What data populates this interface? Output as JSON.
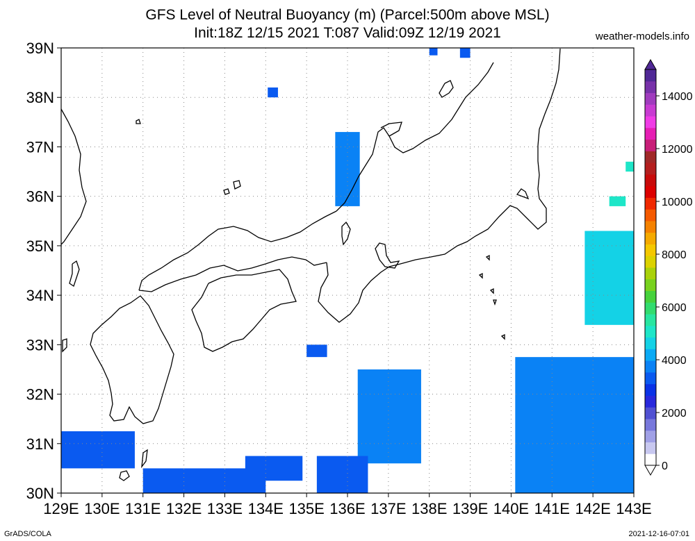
{
  "title_line1": "GFS Level of Neutral Buoyancy (m) (Parcel:500m above MSL)",
  "title_line2": "Init:18Z 12/15 2021 T:087 Valid:09Z 12/19 2021",
  "credit": "weather-models.info",
  "footer_left": "GrADS/COLA",
  "footer_right": "2021-12-16-07:01",
  "axes": {
    "lat_labels": [
      "30N",
      "31N",
      "32N",
      "33N",
      "34N",
      "35N",
      "36N",
      "37N",
      "38N",
      "39N"
    ],
    "lon_labels": [
      "129E",
      "130E",
      "131E",
      "132E",
      "133E",
      "134E",
      "135E",
      "136E",
      "137E",
      "138E",
      "139E",
      "140E",
      "141E",
      "142E",
      "143E"
    ],
    "lat_range": [
      30,
      39
    ],
    "lon_range": [
      129,
      143
    ],
    "grid": "dotted"
  },
  "colorbar": {
    "labels": [
      "0",
      "2000",
      "4000",
      "6000",
      "8000",
      "10000",
      "12000",
      "14000"
    ],
    "range": [
      0,
      15000
    ],
    "colors": [
      "#ffffff",
      "#c8c8f0",
      "#a0a0e6",
      "#7878dc",
      "#5050d2",
      "#2828dc",
      "#0a32e6",
      "#0a5af0",
      "#0a82f5",
      "#0aaaf5",
      "#14d2e6",
      "#1ee6c8",
      "#28e6a0",
      "#32dc6e",
      "#46d23c",
      "#78d21e",
      "#aad20a",
      "#dcd200",
      "#f5c800",
      "#f5aa00",
      "#f58200",
      "#f55a00",
      "#f02800",
      "#dc0000",
      "#c80a0a",
      "#b41e1e",
      "#a02828",
      "#c81e78",
      "#e61eb4",
      "#f03ce6",
      "#c83cd2",
      "#a03cbe",
      "#7832aa",
      "#502896"
    ]
  },
  "field_regions": [
    {
      "name": "tsugaru-north",
      "lon": [
        138.75,
        139.0
      ],
      "lat": [
        38.8,
        39.0
      ],
      "color": "#0a5af0"
    },
    {
      "name": "oga",
      "lon": [
        138.0,
        138.2
      ],
      "lat": [
        38.85,
        39.0
      ],
      "color": "#0a5af0"
    },
    {
      "name": "sado-west",
      "lon": [
        134.05,
        134.3
      ],
      "lat": [
        38.0,
        38.2
      ],
      "color": "#0a5af0"
    },
    {
      "name": "noto-coast",
      "lon": [
        135.7,
        136.3
      ],
      "lat": [
        35.8,
        37.3
      ],
      "color": "#0a82f5"
    },
    {
      "name": "east-coast-35",
      "lon": [
        141.8,
        143.0
      ],
      "lat": [
        33.4,
        35.3
      ],
      "color": "#14d2e6"
    },
    {
      "name": "east-boso",
      "lon": [
        142.4,
        142.8
      ],
      "lat": [
        35.8,
        36.0
      ],
      "color": "#1ee6c8"
    },
    {
      "name": "east-36",
      "lon": [
        142.8,
        143.0
      ],
      "lat": [
        36.5,
        36.7
      ],
      "color": "#1ee6c8"
    },
    {
      "name": "shikoku-south",
      "lon": [
        135.0,
        135.5
      ],
      "lat": [
        32.75,
        33.0
      ],
      "color": "#0a5af0"
    },
    {
      "name": "izu-south",
      "lon": [
        136.25,
        137.8
      ],
      "lat": [
        30.6,
        32.5
      ],
      "color": "#0a82f5"
    },
    {
      "name": "kyushu-south",
      "lon": [
        129.0,
        130.8
      ],
      "lat": [
        30.5,
        31.25
      ],
      "color": "#0a5af0"
    },
    {
      "name": "osumi",
      "lon": [
        131.0,
        134.0
      ],
      "lat": [
        30.0,
        30.5
      ],
      "color": "#0a5af0"
    },
    {
      "name": "tokara",
      "lon": [
        133.5,
        134.9
      ],
      "lat": [
        30.25,
        30.75
      ],
      "color": "#0a5af0"
    },
    {
      "name": "south-sea",
      "lon": [
        135.25,
        136.5
      ],
      "lat": [
        30.0,
        30.75
      ],
      "color": "#0a5af0"
    },
    {
      "name": "southeast",
      "lon": [
        140.1,
        143.0
      ],
      "lat": [
        30.0,
        32.75
      ],
      "color": "#0a82f5"
    }
  ]
}
